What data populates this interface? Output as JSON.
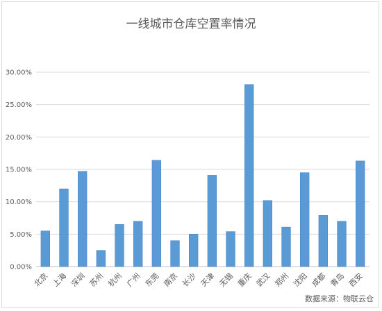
{
  "chart_data": {
    "type": "bar",
    "title": "一线城市仓库空置率情况",
    "source": "数据来源：物联云仓",
    "categories": [
      "北京",
      "上海",
      "深圳",
      "苏州",
      "杭州",
      "广州",
      "东莞",
      "南京",
      "长沙",
      "天津",
      "无锡",
      "重庆",
      "武汉",
      "郑州",
      "沈阳",
      "成都",
      "青岛",
      "西安"
    ],
    "values": [
      5.5,
      12.0,
      14.7,
      2.5,
      6.5,
      7.0,
      16.4,
      4.0,
      5.0,
      14.1,
      5.4,
      28.1,
      10.2,
      6.1,
      14.5,
      7.9,
      7.0,
      16.3
    ],
    "yticks": [
      "0.00%",
      "5.00%",
      "10.00%",
      "15.00%",
      "20.00%",
      "25.00%",
      "30.00%"
    ],
    "ylim": [
      0,
      30
    ],
    "grid": true,
    "colors": {
      "bar": "#5b9bd5",
      "bar_dark": "#3f7fc1",
      "grid": "#d9d9d9",
      "axis": "#bfbfbf"
    }
  }
}
